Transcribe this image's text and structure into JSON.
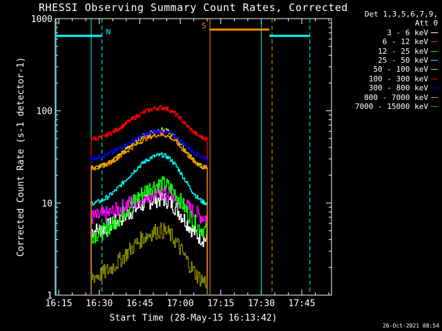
{
  "title": "RHESSI Observing Summary Count Rates, Corrected",
  "legend_header": [
    "Det 1,3,5,6,7,9,",
    "Att 0"
  ],
  "timestamp": "26-Oct-2021 08:54",
  "colors": {
    "background": "#000000",
    "axis": "#ffffff",
    "night": "#00ffff",
    "saa": "#ff8c00"
  },
  "chart_data": {
    "type": "line",
    "title": "RHESSI Observing Summary Count Rates, Corrected",
    "xlabel": "Start Time (28-May-15 16:13:42)",
    "ylabel": "Corrected Count Rate (s-1 detector-1)",
    "yscale": "log",
    "ylim": [
      1,
      1000
    ],
    "xlim": [
      "16:13:42",
      "17:56"
    ],
    "x_ticks": [
      "16:15",
      "16:30",
      "16:45",
      "17:00",
      "17:15",
      "17:30",
      "17:45"
    ],
    "y_ticks": [
      "1",
      "10",
      "100",
      "1000"
    ],
    "grid": false,
    "legend_position": "right",
    "data_start": "16:27",
    "data_end": "17:10",
    "peak_time": "16:53",
    "series": [
      {
        "name": "3 - 6 keV",
        "color": "#ffffff",
        "start": 5,
        "peak": 11,
        "end": 4
      },
      {
        "name": "6 - 12 keV",
        "color": "#ff00ff",
        "start": 7,
        "peak": 13,
        "end": 7
      },
      {
        "name": "12 - 25 keV",
        "color": "#00ff00",
        "start": 4.5,
        "peak": 16,
        "end": 5
      },
      {
        "name": "25 - 50 keV",
        "color": "#00ffff",
        "start": 10,
        "peak": 33,
        "end": 10
      },
      {
        "name": "50 - 100 keV",
        "color": "#d4d400",
        "start": 24,
        "peak": 62,
        "end": 24
      },
      {
        "name": "100 - 300 keV",
        "color": "#ff0000",
        "start": 50,
        "peak": 108,
        "end": 50
      },
      {
        "name": "300 - 800 keV",
        "color": "#0000ff",
        "start": 31,
        "peak": 60,
        "end": 31
      },
      {
        "name": "800 - 7000 keV",
        "color": "#ff8c00",
        "start": 24,
        "peak": 55,
        "end": 24
      },
      {
        "name": "7000 - 15000 keV",
        "color": "#808000",
        "start": 1.6,
        "peak": 5,
        "end": 1.4
      }
    ],
    "flags": [
      {
        "label": "N",
        "color": "#00ffff",
        "start": "16:13:42",
        "end": "16:31",
        "level": 650
      },
      {
        "label": "S",
        "color": "#ff8c00",
        "start": "17:11",
        "end": "17:33",
        "level": 760
      },
      {
        "label": "",
        "color": "#00ffff",
        "start": "17:33",
        "end": "17:48",
        "level": 650
      }
    ],
    "solid_lines": [
      {
        "time": "16:14",
        "color": "#00ffff"
      },
      {
        "time": "16:27",
        "color": "#00ffff"
      },
      {
        "time": "17:11",
        "color": "#ff8c00"
      },
      {
        "time": "17:30",
        "color": "#00ffff"
      }
    ],
    "dashed_lines": [
      {
        "time": "16:31",
        "color": "#00ffff"
      },
      {
        "time": "17:34",
        "color": "#ff8c00"
      },
      {
        "time": "17:48",
        "color": "#00ffff"
      }
    ]
  }
}
